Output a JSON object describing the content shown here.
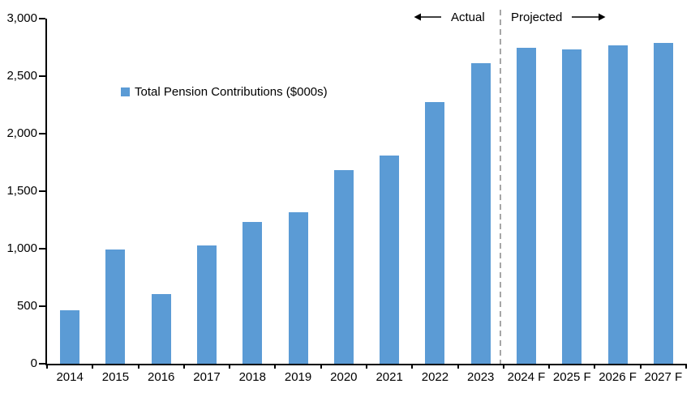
{
  "chart_data": {
    "type": "bar",
    "title": "",
    "xlabel": "",
    "ylabel": "",
    "series_name": "Total Pension Contributions ($000s)",
    "categories": [
      "2014",
      "2015",
      "2016",
      "2017",
      "2018",
      "2019",
      "2020",
      "2021",
      "2022",
      "2023",
      "2024 F",
      "2025 F",
      "2026 F",
      "2027 F"
    ],
    "values": [
      465,
      990,
      605,
      1025,
      1230,
      1315,
      1680,
      1810,
      2275,
      2610,
      2750,
      2735,
      2765,
      2790
    ],
    "ylim": [
      0,
      3000
    ],
    "ytick_values": [
      0,
      500,
      1000,
      1500,
      2000,
      2500,
      3000
    ],
    "ytick_labels": [
      "0",
      "500",
      "1,000",
      "1,500",
      "2,000",
      "2,500",
      "3,000"
    ],
    "grid": false,
    "legend_position": "inside-upper-left",
    "bar_color": "#5B9BD5",
    "axis_color": "#000000",
    "divider": {
      "after_index": 9,
      "style": "dashed",
      "color": "#A6A6A6"
    },
    "annotations": {
      "actual_label": "Actual",
      "projected_label": "Projected"
    }
  }
}
